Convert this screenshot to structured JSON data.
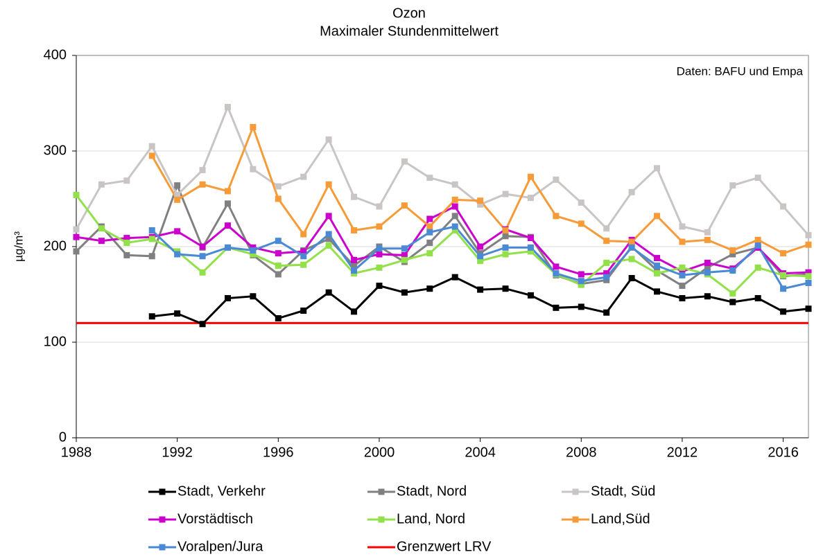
{
  "chart_data": {
    "type": "line",
    "title": "Ozon",
    "subtitle": "Maximaler Stundenmittelwert",
    "y_label": "µg/m³",
    "annotation": "Daten: BAFU und Empa",
    "x": [
      1988,
      1989,
      1990,
      1991,
      1992,
      1993,
      1994,
      1995,
      1996,
      1997,
      1998,
      1999,
      2000,
      2001,
      2002,
      2003,
      2004,
      2005,
      2006,
      2007,
      2008,
      2009,
      2010,
      2011,
      2012,
      2013,
      2014,
      2015,
      2016,
      2017
    ],
    "xlim": [
      1988,
      2017
    ],
    "xticks": [
      1988,
      1992,
      1996,
      2000,
      2004,
      2008,
      2012,
      2016
    ],
    "ylim": [
      0,
      400
    ],
    "yticks": [
      0,
      100,
      200,
      300,
      400
    ],
    "grid": true,
    "series": [
      {
        "name": "Stadt, Verkehr",
        "color": "#000000",
        "values": [
          null,
          null,
          null,
          127,
          130,
          119,
          146,
          148,
          125,
          133,
          152,
          132,
          159,
          152,
          156,
          168,
          155,
          156,
          149,
          136,
          137,
          131,
          167,
          153,
          146,
          148,
          142,
          146,
          132,
          135
        ]
      },
      {
        "name": "Stadt, Nord",
        "color": "#808080",
        "values": [
          195,
          221,
          191,
          190,
          264,
          199,
          245,
          191,
          171,
          196,
          208,
          180,
          200,
          184,
          204,
          232,
          193,
          211,
          210,
          170,
          161,
          165,
          200,
          175,
          159,
          178,
          192,
          199,
          169,
          171
        ]
      },
      {
        "name": "Stadt, Süd",
        "color": "#c9c5c5",
        "values": [
          218,
          265,
          269,
          305,
          254,
          280,
          346,
          281,
          263,
          273,
          312,
          252,
          242,
          289,
          272,
          265,
          244,
          255,
          251,
          270,
          246,
          219,
          257,
          282,
          221,
          215,
          264,
          272,
          242,
          212
        ]
      },
      {
        "name": "Vorstädtisch",
        "color": "#cc00cc",
        "values": [
          210,
          206,
          209,
          210,
          216,
          200,
          222,
          199,
          193,
          195,
          232,
          186,
          192,
          191,
          229,
          242,
          200,
          218,
          209,
          179,
          171,
          172,
          207,
          188,
          174,
          183,
          177,
          199,
          172,
          173
        ]
      },
      {
        "name": "Land, Nord",
        "color": "#92e04a",
        "values": [
          254,
          219,
          204,
          208,
          195,
          173,
          199,
          192,
          180,
          181,
          201,
          172,
          178,
          186,
          193,
          217,
          185,
          192,
          195,
          171,
          160,
          183,
          187,
          172,
          178,
          171,
          151,
          178,
          170,
          169
        ]
      },
      {
        "name": "Land,Süd",
        "color": "#f79a38",
        "values": [
          null,
          null,
          null,
          295,
          249,
          265,
          258,
          325,
          250,
          213,
          265,
          217,
          221,
          243,
          221,
          249,
          248,
          217,
          273,
          232,
          224,
          206,
          205,
          232,
          205,
          207,
          196,
          207,
          193,
          202
        ]
      },
      {
        "name": "Voralpen/Jura",
        "color": "#4a8ad4",
        "values": [
          null,
          null,
          null,
          217,
          192,
          190,
          199,
          196,
          206,
          190,
          213,
          175,
          198,
          198,
          215,
          221,
          190,
          199,
          199,
          172,
          164,
          168,
          199,
          180,
          170,
          173,
          175,
          201,
          156,
          162
        ]
      }
    ],
    "reference_lines": [
      {
        "name": "Grenzwert LRV",
        "color": "#ff0000",
        "value": 120
      }
    ]
  }
}
